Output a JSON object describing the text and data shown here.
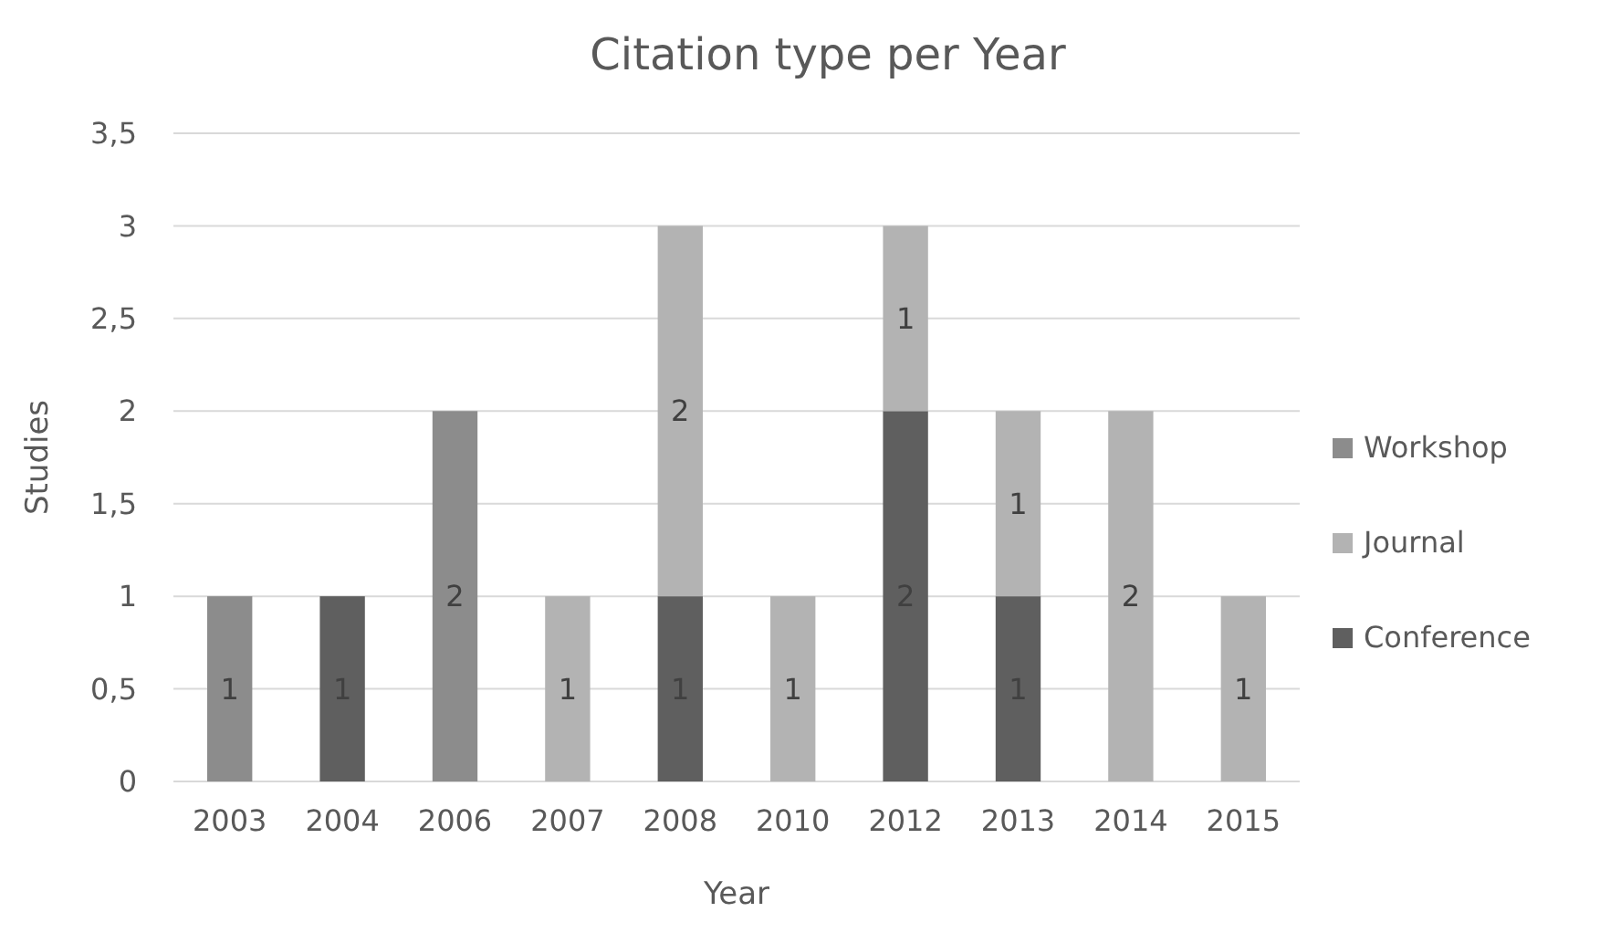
{
  "chart_data": {
    "type": "bar",
    "title": "Citation type per Year",
    "xlabel": "Year",
    "ylabel": "Studies",
    "categories": [
      "2003",
      "2004",
      "2006",
      "2007",
      "2008",
      "2010",
      "2012",
      "2013",
      "2014",
      "2015"
    ],
    "stacked": true,
    "data_labels": true,
    "grid": "y",
    "legend": "right",
    "ylim": [
      0,
      3.5
    ],
    "yticks": [
      0,
      {
        "value": 0.5,
        "label": "0,5"
      },
      1,
      {
        "value": 1.5,
        "label": "1,5"
      },
      2,
      {
        "value": 2.5,
        "label": "2,5"
      },
      3,
      {
        "value": 3.5,
        "label": "3,5"
      }
    ],
    "series": [
      {
        "name": "Conference",
        "color": "#5f5f5f",
        "values": [
          null,
          1,
          null,
          null,
          1,
          null,
          2,
          1,
          null,
          null
        ]
      },
      {
        "name": "Journal",
        "color": "#b3b3b3",
        "values": [
          null,
          null,
          null,
          1,
          2,
          1,
          1,
          1,
          2,
          1
        ]
      },
      {
        "name": "Workshop",
        "color": "#8c8c8c",
        "values": [
          1,
          null,
          2,
          null,
          null,
          null,
          null,
          null,
          null,
          null
        ]
      }
    ]
  }
}
